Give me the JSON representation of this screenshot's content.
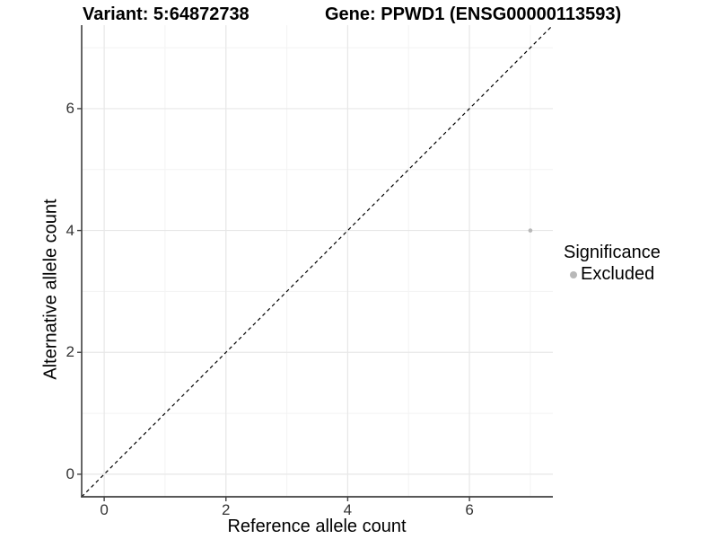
{
  "chart_data": {
    "type": "scatter",
    "title_left": "Variant: 5:64872738",
    "title_right": "Gene: PPWD1 (ENSG00000113593)",
    "xlabel": "Reference allele count",
    "ylabel": "Alternative allele count",
    "xlim": [
      -0.37,
      7.37
    ],
    "ylim": [
      -0.37,
      7.37
    ],
    "x_ticks": [
      0,
      2,
      4,
      6
    ],
    "y_ticks": [
      0,
      2,
      4,
      6
    ],
    "x_minor_ticks": [
      1,
      3,
      5,
      7
    ],
    "y_minor_ticks": [
      1,
      3,
      5,
      7
    ],
    "grid": "major and minor gridlines on, white panel background",
    "identity_line": {
      "style": "dashed",
      "color": "#000000",
      "x1": -0.37,
      "y1": -0.37,
      "x2": 7.37,
      "y2": 7.37
    },
    "series": [
      {
        "name": "Excluded",
        "marker": "circle",
        "color": "#b8b8b8",
        "points": [
          {
            "x": 7,
            "y": 4
          }
        ]
      }
    ],
    "legend": {
      "title": "Significance",
      "position": "right",
      "entries": [
        {
          "label": "Excluded",
          "color": "#b8b8b8",
          "marker": "circle"
        }
      ]
    },
    "colors": {
      "background": "#ffffff",
      "grid_major": "#e7e7e7",
      "grid_minor": "#f3f3f3",
      "axis_line": "#404040",
      "tick_text": "#333333",
      "point": "#b8b8b8"
    }
  }
}
